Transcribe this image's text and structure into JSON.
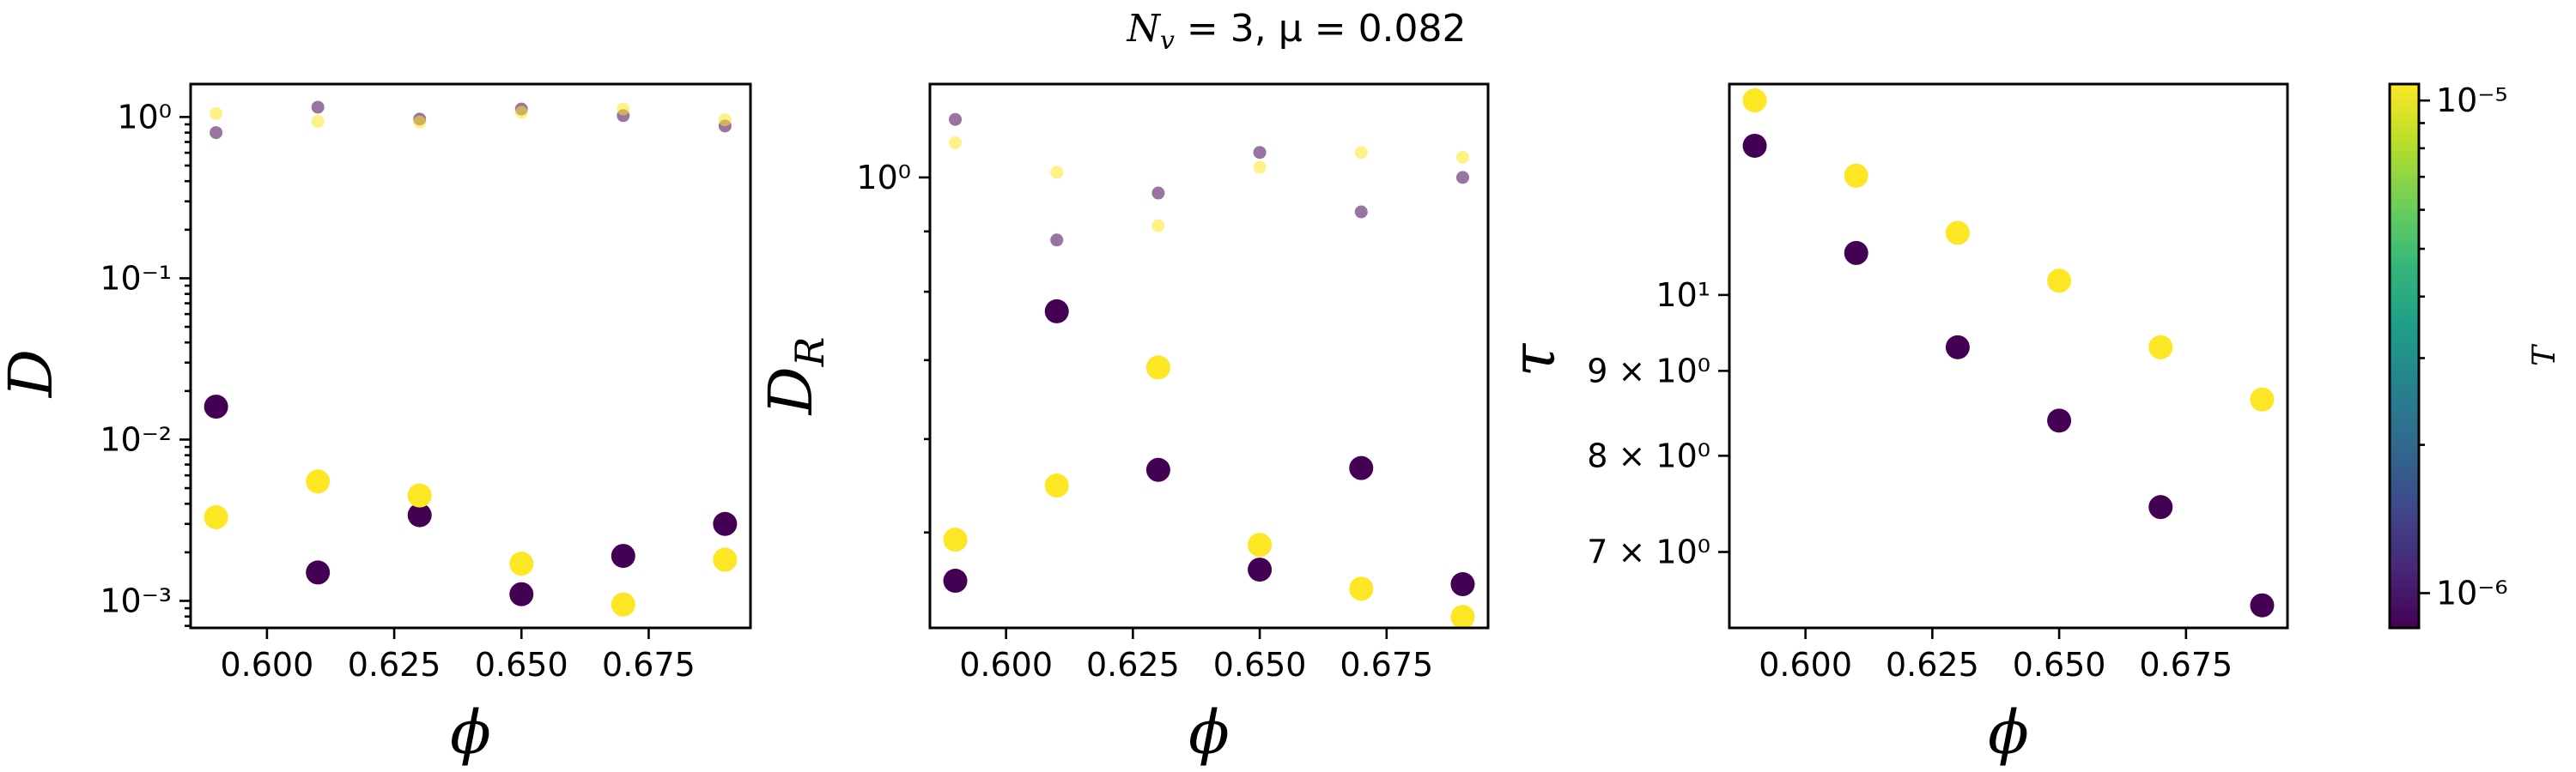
{
  "figure": {
    "title": "N_v = 3, μ = 0.082",
    "title_parts": {
      "symbol": "N",
      "sub": "v",
      "rest": " = 3, μ = 0.082"
    }
  },
  "colors": {
    "low_T": "#440154",
    "high_T": "#fde725",
    "viridis": [
      "#440154",
      "#482878",
      "#3e4989",
      "#31688e",
      "#26828e",
      "#1f9e89",
      "#35b779",
      "#6ece58",
      "#b5de2b",
      "#fde725"
    ]
  },
  "colorbar": {
    "label": "T",
    "range": [
      8.5e-07,
      1.08e-05
    ],
    "ticks": [
      {
        "value": 1e-06,
        "label": "10⁻⁶"
      },
      {
        "value": 1e-05,
        "label": "10⁻⁵"
      }
    ]
  },
  "chart_data": [
    {
      "id": "D",
      "type": "scatter",
      "title": "",
      "xlabel": "ϕ",
      "ylabel": "D",
      "yscale": "log",
      "xlim": [
        0.585,
        0.695
      ],
      "ylim": [
        0.00068,
        1.6
      ],
      "xticks": [
        {
          "value": 0.6,
          "label": "0.600"
        },
        {
          "value": 0.625,
          "label": "0.625"
        },
        {
          "value": 0.65,
          "label": "0.650"
        },
        {
          "value": 0.675,
          "label": "0.675"
        }
      ],
      "yticks": [
        {
          "value": 0.001,
          "label": "10⁻³"
        },
        {
          "value": 0.01,
          "label": "10⁻²"
        },
        {
          "value": 0.1,
          "label": "10⁻¹"
        },
        {
          "value": 1,
          "label": "10⁰"
        }
      ],
      "series": [
        {
          "name": "T=1e-6 (large)",
          "T": 1e-06,
          "style": "large",
          "x": [
            0.59,
            0.61,
            0.63,
            0.65,
            0.67,
            0.69
          ],
          "y": [
            0.016,
            0.0015,
            0.0034,
            0.0011,
            0.0019,
            0.003
          ]
        },
        {
          "name": "T=1e-5 (large)",
          "T": 1e-05,
          "style": "large",
          "x": [
            0.59,
            0.61,
            0.63,
            0.65,
            0.67,
            0.69
          ],
          "y": [
            0.0033,
            0.0055,
            0.0045,
            0.0017,
            0.00095,
            0.0018
          ]
        },
        {
          "name": "T=1e-6 (small)",
          "T": 1e-06,
          "style": "small",
          "x": [
            0.59,
            0.61,
            0.63,
            0.65,
            0.67,
            0.69
          ],
          "y": [
            0.8,
            1.15,
            0.97,
            1.12,
            1.02,
            0.88
          ]
        },
        {
          "name": "T=1e-5 (small)",
          "T": 1e-05,
          "style": "small",
          "x": [
            0.59,
            0.61,
            0.63,
            0.65,
            0.67,
            0.69
          ],
          "y": [
            1.05,
            0.94,
            0.93,
            1.07,
            1.12,
            0.96
          ]
        }
      ]
    },
    {
      "id": "DR",
      "type": "scatter",
      "title": "",
      "xlabel": "ϕ",
      "ylabel": "D_R",
      "ylabel_parts": {
        "symbol": "D",
        "sub": "R"
      },
      "yscale": "log",
      "xlim": [
        0.585,
        0.695
      ],
      "ylim": [
        0.415,
        1.2
      ],
      "xticks": [
        {
          "value": 0.6,
          "label": "0.600"
        },
        {
          "value": 0.625,
          "label": "0.625"
        },
        {
          "value": 0.65,
          "label": "0.650"
        },
        {
          "value": 0.675,
          "label": "0.675"
        }
      ],
      "yticks": [
        {
          "value": 1,
          "label": "10⁰"
        }
      ],
      "yminor": [
        0.5,
        0.6,
        0.7,
        0.8,
        0.9
      ],
      "series": [
        {
          "name": "T=1e-6 (large)",
          "T": 1e-06,
          "style": "large",
          "x": [
            0.59,
            0.61,
            0.63,
            0.65,
            0.67,
            0.69
          ],
          "y": [
            0.455,
            0.77,
            0.565,
            0.465,
            0.567,
            0.452
          ]
        },
        {
          "name": "T=1e-5 (large)",
          "T": 1e-05,
          "style": "large",
          "x": [
            0.59,
            0.61,
            0.63,
            0.65,
            0.67,
            0.69
          ],
          "y": [
            0.493,
            0.548,
            0.69,
            0.488,
            0.448,
            0.424
          ]
        },
        {
          "name": "T=1e-6 (small)",
          "T": 1e-06,
          "style": "small",
          "x": [
            0.59,
            0.61,
            0.63,
            0.65,
            0.67,
            0.69
          ],
          "y": [
            1.12,
            0.885,
            0.97,
            1.05,
            0.935,
            1.0
          ]
        },
        {
          "name": "T=1e-5 (small)",
          "T": 1e-05,
          "style": "small",
          "x": [
            0.59,
            0.61,
            0.63,
            0.65,
            0.67,
            0.69
          ],
          "y": [
            1.07,
            1.01,
            0.91,
            1.02,
            1.05,
            1.04
          ]
        }
      ]
    },
    {
      "id": "tau",
      "type": "scatter",
      "title": "",
      "xlabel": "ϕ",
      "ylabel": "τ",
      "yscale": "log",
      "xlim": [
        0.585,
        0.695
      ],
      "ylim": [
        6.3,
        13.4
      ],
      "xticks": [
        {
          "value": 0.6,
          "label": "0.600"
        },
        {
          "value": 0.625,
          "label": "0.625"
        },
        {
          "value": 0.65,
          "label": "0.650"
        },
        {
          "value": 0.675,
          "label": "0.675"
        }
      ],
      "yticks": [
        {
          "value": 7,
          "label": "7 × 10⁰"
        },
        {
          "value": 8,
          "label": "8 × 10⁰"
        },
        {
          "value": 9,
          "label": "9 × 10⁰"
        },
        {
          "value": 10,
          "label": "10¹"
        }
      ],
      "series": [
        {
          "name": "T=1e-6",
          "T": 1e-06,
          "style": "large",
          "x": [
            0.59,
            0.61,
            0.63,
            0.65,
            0.67,
            0.69
          ],
          "y": [
            12.3,
            10.6,
            9.3,
            8.4,
            7.45,
            6.5
          ]
        },
        {
          "name": "T=1e-5",
          "T": 1e-05,
          "style": "large",
          "x": [
            0.59,
            0.61,
            0.63,
            0.65,
            0.67,
            0.69
          ],
          "y": [
            13.1,
            11.8,
            10.9,
            10.2,
            9.3,
            8.65
          ]
        }
      ]
    }
  ]
}
